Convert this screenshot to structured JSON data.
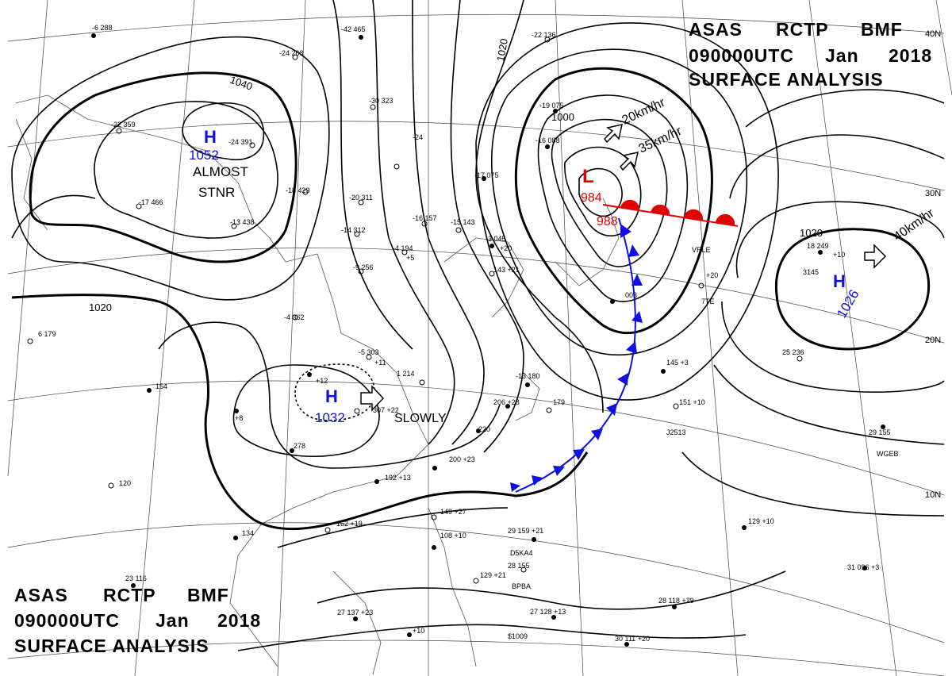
{
  "header_top": {
    "line1": [
      "ASAS",
      "RCTP",
      "BMF"
    ],
    "line2": [
      "090000UTC",
      "Jan",
      "2018"
    ],
    "line3": "SURFACE ANALYSIS"
  },
  "header_bottom": {
    "line1": [
      "ASAS",
      "RCTP",
      "BMF"
    ],
    "line2": [
      "090000UTC",
      "Jan",
      "2018"
    ],
    "line3": "SURFACE ANALYSIS"
  },
  "latitude_labels": [
    "40N",
    "30N",
    "20N",
    "10N"
  ],
  "isobar_labels": [
    "1040",
    "1020",
    "1020",
    "1000",
    "1020"
  ],
  "pressure_systems": [
    {
      "type": "H",
      "value": "1052",
      "note_lines": [
        "ALMOST",
        "STNR"
      ]
    },
    {
      "type": "H",
      "value": "1032",
      "motion": "SLOWLY"
    },
    {
      "type": "L",
      "value": "984",
      "second_value": "988",
      "motions": [
        "20km/hr",
        "35km/hr"
      ]
    },
    {
      "type": "H",
      "value": "1026",
      "motion": "40km/hr"
    }
  ],
  "station_labels": [
    "-6 288",
    "-42 465",
    "-24 268",
    "-30 323",
    "-22 136",
    "-22 359",
    "-24 391",
    "-19 075",
    "-16 088",
    "-17 075",
    "-18 429",
    "-13 438",
    "-17 466",
    "-20 311",
    "-14 312",
    "-4 362",
    "-9 256",
    "-5 303",
    "+11",
    "+12",
    "-24",
    "-15 143",
    "-16 157",
    "-4 194",
    "+5",
    "-3 045",
    "+20",
    "143 +21",
    "1 214",
    "-13 180",
    "206 +28",
    "179",
    "220",
    "200 +23",
    "192 +13",
    "278",
    "307 +22",
    "162 +19",
    "134",
    "120",
    "6 179",
    "154",
    "+8",
    "145 +3",
    "151 +10",
    "J2513",
    "29 155",
    "WGEB",
    "18 249",
    "+10",
    "25 236",
    "+20",
    "003",
    "129 +10",
    "29 159 +21",
    "D5KA4",
    "28 155",
    "BPBA",
    "31 096 +3",
    "28 118 +29",
    "30 111 +20",
    "27 128 +13",
    "$1009",
    "27 137 +23",
    "23 116",
    "+10",
    "108 +10",
    "149 +27",
    "129 +21",
    "3145",
    "VRLE",
    "7TE"
  ]
}
